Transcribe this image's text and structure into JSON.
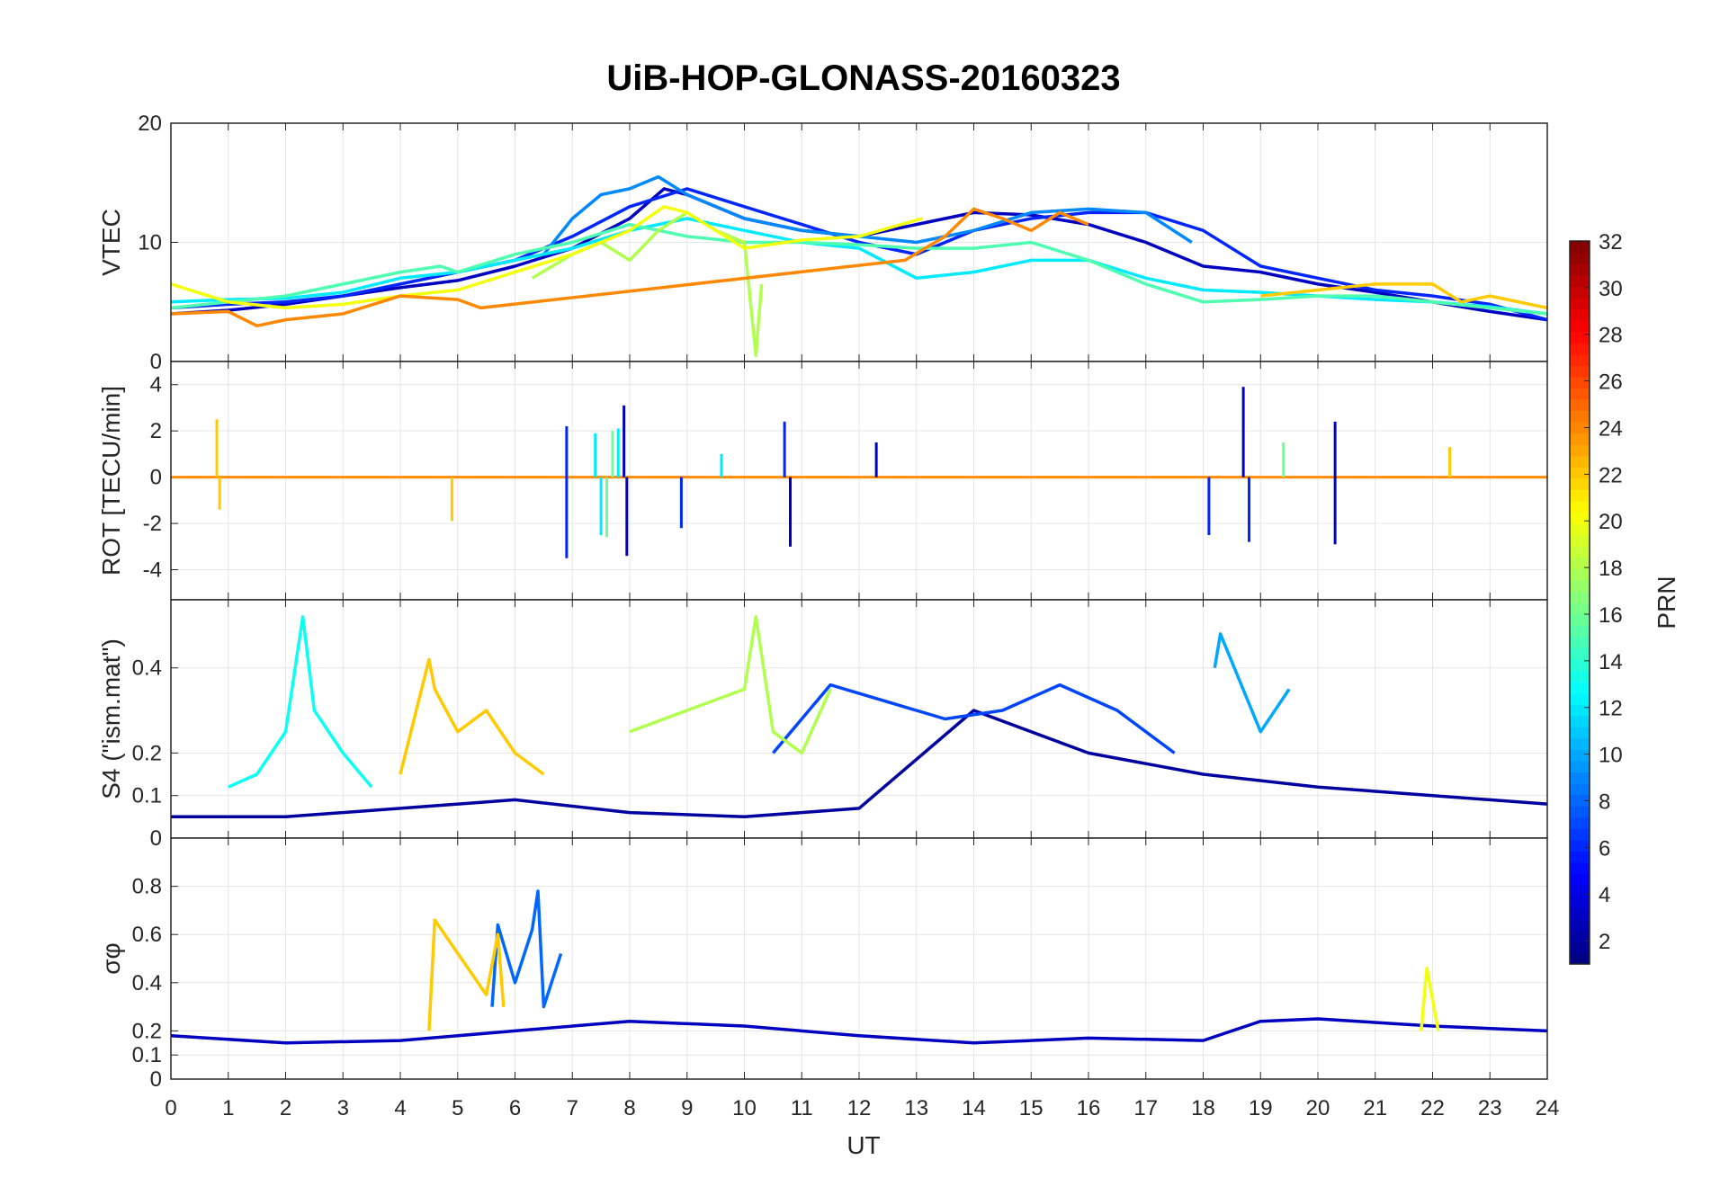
{
  "chart_data": {
    "type": "line",
    "title": "UiB-HOP-GLONASS-20160323",
    "xlabel": "UT",
    "xlim": [
      0,
      24
    ],
    "x_ticks": [
      "0",
      "1",
      "2",
      "3",
      "4",
      "5",
      "6",
      "7",
      "8",
      "9",
      "10",
      "11",
      "12",
      "13",
      "14",
      "15",
      "16",
      "17",
      "18",
      "19",
      "20",
      "21",
      "22",
      "23",
      "24"
    ],
    "grid": true,
    "colorbar": {
      "label": "PRN",
      "range": [
        1,
        32
      ],
      "ticks": [
        "2",
        "4",
        "6",
        "8",
        "10",
        "12",
        "14",
        "16",
        "18",
        "20",
        "22",
        "24",
        "26",
        "28",
        "30",
        "32"
      ],
      "colormap": "jet"
    },
    "panels": [
      {
        "id": "vtec",
        "ylabel": "VTEC",
        "ylim": [
          0,
          20
        ],
        "y_ticks": [
          0,
          10,
          20
        ],
        "series": [
          {
            "prn": 3,
            "x": [
              0,
              1,
              2,
              3,
              4,
              5,
              6,
              7,
              8,
              8.6,
              9,
              10,
              11,
              12,
              13,
              14,
              15,
              16,
              17,
              18,
              19,
              20,
              21,
              22,
              23,
              24
            ],
            "y": [
              4,
              4.3,
              4.8,
              5.5,
              6.2,
              6.8,
              8,
              9.5,
              12,
              14.5,
              14,
              12,
              11,
              10.5,
              11.5,
              12.5,
              12.3,
              11.5,
              10,
              8,
              7.5,
              6.5,
              5.8,
              5,
              4.2,
              3.5
            ]
          },
          {
            "prn": 6,
            "x": [
              0,
              1,
              2,
              3,
              4,
              5,
              6,
              7,
              8,
              9,
              10,
              11,
              12,
              13,
              14,
              15,
              16,
              17,
              18,
              19,
              20,
              21,
              22,
              23,
              24
            ],
            "y": [
              4.5,
              4.8,
              5,
              5.5,
              6.5,
              7.5,
              8.5,
              10.5,
              13,
              14.5,
              13,
              11.5,
              10,
              9,
              11,
              12,
              12.5,
              12.5,
              11,
              8,
              7,
              6,
              5.5,
              4.8,
              3.5
            ]
          },
          {
            "prn": 9,
            "x": [
              6.5,
              7,
              7.5,
              8,
              8.5,
              9,
              10,
              11,
              12,
              13,
              14,
              15,
              16,
              17,
              17.8
            ],
            "y": [
              9,
              12,
              14,
              14.5,
              15.5,
              14,
              12,
              11,
              10.5,
              10,
              11,
              12.5,
              12.8,
              12.5,
              10
            ]
          },
          {
            "prn": 12,
            "x": [
              0,
              1,
              2,
              3,
              4,
              5,
              6,
              7,
              8,
              9,
              10,
              11,
              12,
              13,
              14,
              15,
              16,
              17,
              18,
              19,
              20,
              21,
              22,
              23,
              24
            ],
            "y": [
              5,
              5.2,
              5.3,
              5.8,
              7,
              7.5,
              8.5,
              9.5,
              11,
              12,
              11,
              10,
              9.5,
              7,
              7.5,
              8.5,
              8.5,
              7,
              6,
              5.8,
              5.5,
              5.2,
              5,
              4.6,
              4
            ]
          },
          {
            "prn": 15,
            "x": [
              0,
              1,
              2,
              3,
              4,
              4.7,
              5,
              6,
              7,
              8,
              9,
              10,
              11,
              12,
              13,
              14,
              15,
              16,
              17,
              18,
              19,
              20,
              21,
              22,
              23,
              24
            ],
            "y": [
              4.5,
              5,
              5.5,
              6.5,
              7.5,
              8,
              7.5,
              9,
              10,
              11.5,
              10.5,
              10,
              10,
              9.8,
              9.5,
              9.5,
              10,
              8.5,
              6.5,
              5,
              5.2,
              5.5,
              5.5,
              5,
              4.5,
              4
            ]
          },
          {
            "prn": 18,
            "x": [
              6.3,
              7,
              7.5,
              8,
              8.5,
              9,
              9.5,
              10,
              10.2,
              10.3
            ],
            "y": [
              7,
              9,
              10,
              8.5,
              11,
              12.5,
              11,
              10,
              0.5,
              6.5
            ]
          },
          {
            "prn": 20,
            "x": [
              0,
              1,
              2,
              3,
              4,
              5,
              6,
              7,
              8,
              8.6,
              9,
              10,
              11,
              12,
              13.1
            ],
            "y": [
              6.5,
              5,
              4.5,
              4.8,
              5.5,
              6,
              7.5,
              9,
              11,
              13,
              12.5,
              9.5,
              10.2,
              10.5,
              12
            ]
          },
          {
            "prn": 22,
            "x": [
              19,
              20,
              21,
              22,
              22.5,
              23,
              24
            ],
            "y": [
              5.5,
              6,
              6.5,
              6.5,
              5,
              5.5,
              4.5
            ]
          },
          {
            "prn": 24,
            "x": [
              0,
              1,
              1.5,
              2,
              3,
              4,
              5,
              5.4,
              12.8,
              13.5,
              14,
              14.5,
              15,
              15.5,
              16
            ],
            "y": [
              4,
              4.2,
              3,
              3.5,
              4,
              5.5,
              5.2,
              4.5,
              8.5,
              10.5,
              12.8,
              12,
              11,
              12.5,
              11.5
            ]
          }
        ]
      },
      {
        "id": "rot",
        "ylabel": "ROT [TECU/min]",
        "ylim": [
          -5.3,
          5
        ],
        "y_ticks": [
          -4,
          -2,
          0,
          2,
          4
        ],
        "series": [
          {
            "prn": 3,
            "spikes": [
              [
                7.9,
                3.1
              ],
              [
                7.95,
                -3.4
              ],
              [
                10.8,
                -3
              ],
              [
                12.3,
                1.5
              ],
              [
                18.7,
                3.9
              ],
              [
                20.3,
                2.4
              ],
              [
                20.3,
                -2.9
              ]
            ]
          },
          {
            "prn": 6,
            "spikes": [
              [
                6.9,
                2.2
              ],
              [
                6.9,
                -3.5
              ],
              [
                8.9,
                -2.2
              ],
              [
                10.7,
                2.4
              ],
              [
                18.1,
                -2.5
              ],
              [
                18.8,
                -2.8
              ]
            ]
          },
          {
            "prn": 12,
            "spikes": [
              [
                7.4,
                1.9
              ],
              [
                7.5,
                -2.5
              ],
              [
                7.8,
                2.1
              ],
              [
                9.6,
                1.0
              ]
            ]
          },
          {
            "prn": 16,
            "spikes": [
              [
                7.6,
                -2.6
              ],
              [
                7.7,
                2.0
              ],
              [
                19.4,
                1.5
              ]
            ]
          },
          {
            "prn": 22,
            "spikes": [
              [
                0.8,
                2.5
              ],
              [
                0.85,
                -1.4
              ],
              [
                4.9,
                -1.9
              ],
              [
                22.3,
                1.3
              ]
            ]
          }
        ]
      },
      {
        "id": "s4",
        "ylabel": "S4 (\"ism.mat\")",
        "ylim": [
          0,
          0.56
        ],
        "y_ticks": [
          0,
          0.1,
          0.2,
          0.4
        ],
        "series": [
          {
            "prn": 2,
            "x": [
              0,
              2,
              4,
              6,
              8,
              10,
              12,
              14,
              16,
              18,
              20,
              22,
              24
            ],
            "y": [
              0.05,
              0.05,
              0.07,
              0.09,
              0.06,
              0.05,
              0.07,
              0.3,
              0.2,
              0.15,
              0.12,
              0.1,
              0.08
            ]
          },
          {
            "prn": 7,
            "x": [
              10.5,
              11.5,
              12.5,
              13.5,
              14.5,
              15.5,
              16.5,
              17.5
            ],
            "y": [
              0.2,
              0.36,
              0.32,
              0.28,
              0.3,
              0.36,
              0.3,
              0.2
            ]
          },
          {
            "prn": 10,
            "x": [
              18.2,
              18.3,
              19,
              19.5
            ],
            "y": [
              0.4,
              0.48,
              0.25,
              0.35
            ]
          },
          {
            "prn": 13,
            "x": [
              1,
              1.5,
              2,
              2.3,
              2.5,
              3,
              3.5
            ],
            "y": [
              0.12,
              0.15,
              0.25,
              0.52,
              0.3,
              0.2,
              0.12
            ]
          },
          {
            "prn": 18,
            "x": [
              8,
              9,
              10,
              10.2,
              10.5,
              11,
              11.5
            ],
            "y": [
              0.25,
              0.3,
              0.35,
              0.52,
              0.25,
              0.2,
              0.35
            ]
          },
          {
            "prn": 22,
            "x": [
              4,
              4.5,
              4.6,
              5,
              5.5,
              6,
              6.5
            ],
            "y": [
              0.15,
              0.42,
              0.35,
              0.25,
              0.3,
              0.2,
              0.15
            ]
          }
        ]
      },
      {
        "id": "sigma",
        "ylabel": "σφ",
        "ylim": [
          0,
          1
        ],
        "y_ticks": [
          0,
          0.1,
          0.2,
          0.4,
          0.6,
          0.8
        ],
        "series": [
          {
            "prn": 3,
            "x": [
              0,
              2,
              4,
              6,
              8,
              10,
              12,
              14,
              16,
              18,
              19,
              20,
              22,
              24
            ],
            "y": [
              0.18,
              0.15,
              0.16,
              0.2,
              0.24,
              0.22,
              0.18,
              0.15,
              0.17,
              0.16,
              0.24,
              0.25,
              0.22,
              0.2
            ]
          },
          {
            "prn": 8,
            "x": [
              5.6,
              5.7,
              6,
              6.3,
              6.4,
              6.5,
              6.8
            ],
            "y": [
              0.3,
              0.64,
              0.4,
              0.62,
              0.78,
              0.3,
              0.52
            ]
          },
          {
            "prn": 22,
            "x": [
              4.5,
              4.6,
              5.5,
              5.7,
              5.8
            ],
            "y": [
              0.2,
              0.66,
              0.35,
              0.6,
              0.3
            ]
          },
          {
            "prn": 20,
            "x": [
              21.8,
              21.9,
              22.1
            ],
            "y": [
              0.2,
              0.46,
              0.2
            ]
          }
        ]
      }
    ]
  }
}
